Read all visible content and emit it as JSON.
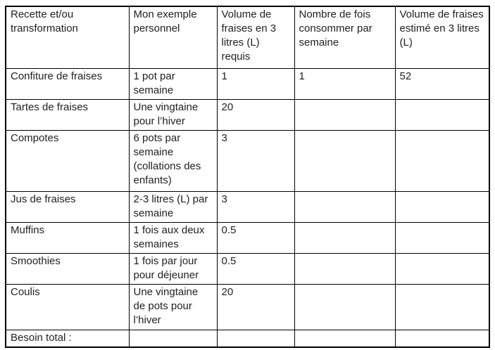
{
  "table": {
    "headers": [
      "Recette et/ou transformation",
      "Mon exemple personnel",
      "Volume de fraises en 3 litres (L) requis",
      "Nombre de fois consommer par semaine",
      "Volume de fraises estimé en 3 litres (L)"
    ],
    "rows": [
      [
        "Confiture de fraises",
        "1 pot par semaine",
        "1",
        "1",
        "52"
      ],
      [
        "Tartes de fraises",
        "Une vingtaine pour l’hiver",
        "20",
        "",
        ""
      ],
      [
        "Compotes",
        "6 pots par semaine (collations des enfants)",
        "3",
        "",
        ""
      ],
      [
        "Jus de fraises",
        "2-3 litres (L) par semaine",
        "3",
        "",
        ""
      ],
      [
        "Muffins",
        "1 fois aux deux semaines",
        "0.5",
        "",
        ""
      ],
      [
        "Smoothies",
        "1 fois par jour pour déjeuner",
        "0.5",
        "",
        ""
      ],
      [
        "Coulis",
        "Une vingtaine de pots pour l’hiver",
        "20",
        "",
        ""
      ],
      [
        "Besoin total :",
        "",
        "",
        "",
        ""
      ]
    ]
  },
  "colors": {
    "border": "#000000",
    "text": "#1f1f1f",
    "background": "#ffffff"
  }
}
